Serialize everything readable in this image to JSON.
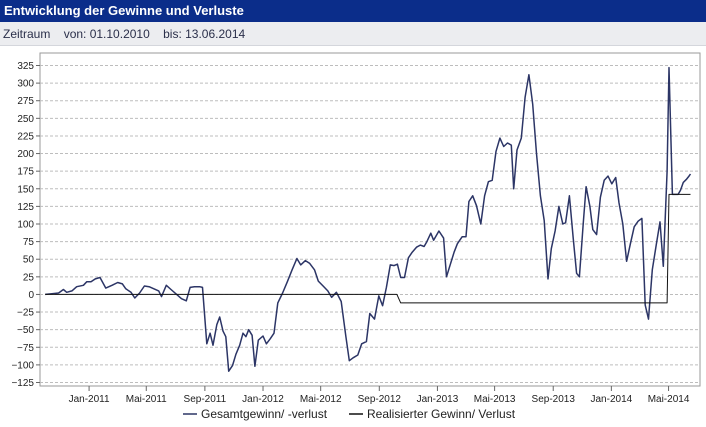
{
  "header": {
    "title": "Entwicklung der Gewinne und Verluste"
  },
  "period": {
    "label": "Zeitraum",
    "from": "von: 01.10.2010",
    "to": "bis: 13.06.2014"
  },
  "colors": {
    "header_bg": "#0b2d8a",
    "series_total": "#2c3566",
    "series_realized": "#111111",
    "grid": "#bdbdbd"
  },
  "chart_data": {
    "type": "line",
    "title": "",
    "ylim": [
      -125,
      335
    ],
    "y_ticks": [
      325,
      300,
      275,
      250,
      225,
      200,
      175,
      150,
      125,
      100,
      75,
      50,
      25,
      0,
      -25,
      -50,
      -75,
      -100,
      -125
    ],
    "y_tick_labels": [
      "325",
      "300",
      "275",
      "250",
      "225",
      "200",
      "175",
      "150",
      "125",
      "100",
      "75",
      "50",
      "25",
      "0",
      "−25",
      "−50",
      "−75",
      "−100",
      "−125"
    ],
    "x_tick_labels": [
      "Jan-2011",
      "Mai-2011",
      "Sep-2011",
      "Jan-2012",
      "Mai-2012",
      "Sep-2012",
      "Jan-2013",
      "Mai-2013",
      "Sep-2013",
      "Jan-2014",
      "Mai-2014"
    ],
    "x_tick_dates": [
      "2011-01-01",
      "2011-05-01",
      "2011-09-01",
      "2012-01-01",
      "2012-05-01",
      "2012-09-01",
      "2013-01-01",
      "2013-05-01",
      "2013-09-01",
      "2014-01-01",
      "2014-05-01"
    ],
    "grid": true,
    "legend_position": "bottom-center",
    "series": [
      {
        "name": "Gesamtgewinn/ -verlust",
        "points": [
          [
            "2010-10-01",
            0
          ],
          [
            "2010-10-15",
            1
          ],
          [
            "2010-10-29",
            2
          ],
          [
            "2010-11-08",
            7
          ],
          [
            "2010-11-15",
            3
          ],
          [
            "2010-11-26",
            5
          ],
          [
            "2010-12-06",
            11
          ],
          [
            "2010-12-20",
            13
          ],
          [
            "2010-12-27",
            18
          ],
          [
            "2011-01-05",
            18
          ],
          [
            "2011-01-14",
            22
          ],
          [
            "2011-01-24",
            24
          ],
          [
            "2011-02-05",
            9
          ],
          [
            "2011-02-18",
            13
          ],
          [
            "2011-03-02",
            17
          ],
          [
            "2011-03-12",
            15
          ],
          [
            "2011-03-19",
            8
          ],
          [
            "2011-03-30",
            3
          ],
          [
            "2011-04-07",
            -5
          ],
          [
            "2011-04-17",
            2
          ],
          [
            "2011-04-27",
            12
          ],
          [
            "2011-05-07",
            11
          ],
          [
            "2011-05-17",
            8
          ],
          [
            "2011-05-27",
            5
          ],
          [
            "2011-06-02",
            -3
          ],
          [
            "2011-06-12",
            13
          ],
          [
            "2011-06-22",
            7
          ],
          [
            "2011-07-02",
            1
          ],
          [
            "2011-07-14",
            -6
          ],
          [
            "2011-07-24",
            -9
          ],
          [
            "2011-08-01",
            10
          ],
          [
            "2011-08-10",
            11
          ],
          [
            "2011-08-21",
            11
          ],
          [
            "2011-08-27",
            10
          ],
          [
            "2011-09-05",
            -70
          ],
          [
            "2011-09-12",
            -55
          ],
          [
            "2011-09-18",
            -72
          ],
          [
            "2011-09-26",
            -43
          ],
          [
            "2011-10-02",
            -32
          ],
          [
            "2011-10-09",
            -52
          ],
          [
            "2011-10-15",
            -60
          ],
          [
            "2011-10-21",
            -109
          ],
          [
            "2011-10-29",
            -101
          ],
          [
            "2011-11-05",
            -85
          ],
          [
            "2011-11-13",
            -72
          ],
          [
            "2011-11-20",
            -55
          ],
          [
            "2011-11-26",
            -60
          ],
          [
            "2011-12-02",
            -50
          ],
          [
            "2011-12-09",
            -58
          ],
          [
            "2011-12-15",
            -102
          ],
          [
            "2011-12-22",
            -65
          ],
          [
            "2012-01-01",
            -59
          ],
          [
            "2012-01-08",
            -70
          ],
          [
            "2012-01-16",
            -63
          ],
          [
            "2012-01-24",
            -55
          ],
          [
            "2012-02-01",
            -12
          ],
          [
            "2012-02-11",
            2
          ],
          [
            "2012-02-21",
            18
          ],
          [
            "2012-03-02",
            35
          ],
          [
            "2012-03-12",
            51
          ],
          [
            "2012-03-20",
            42
          ],
          [
            "2012-03-30",
            48
          ],
          [
            "2012-04-08",
            44
          ],
          [
            "2012-04-18",
            35
          ],
          [
            "2012-04-26",
            19
          ],
          [
            "2012-05-06",
            12
          ],
          [
            "2012-05-16",
            5
          ],
          [
            "2012-05-24",
            -4
          ],
          [
            "2012-06-03",
            3
          ],
          [
            "2012-06-13",
            -10
          ],
          [
            "2012-06-23",
            -60
          ],
          [
            "2012-06-30",
            -94
          ],
          [
            "2012-07-08",
            -90
          ],
          [
            "2012-07-18",
            -86
          ],
          [
            "2012-07-26",
            -70
          ],
          [
            "2012-08-05",
            -67
          ],
          [
            "2012-08-12",
            -27
          ],
          [
            "2012-08-22",
            -35
          ],
          [
            "2012-08-31",
            -2
          ],
          [
            "2012-09-08",
            -16
          ],
          [
            "2012-09-16",
            10
          ],
          [
            "2012-09-24",
            42
          ],
          [
            "2012-10-02",
            41
          ],
          [
            "2012-10-09",
            43
          ],
          [
            "2012-10-16",
            24
          ],
          [
            "2012-10-24",
            24
          ],
          [
            "2012-11-01",
            52
          ],
          [
            "2012-11-09",
            60
          ],
          [
            "2012-11-18",
            67
          ],
          [
            "2012-11-26",
            70
          ],
          [
            "2012-12-04",
            68
          ],
          [
            "2012-12-10",
            75
          ],
          [
            "2012-12-18",
            87
          ],
          [
            "2012-12-24",
            77
          ],
          [
            "2013-01-04",
            90
          ],
          [
            "2013-01-14",
            80
          ],
          [
            "2013-01-20",
            25
          ],
          [
            "2013-01-26",
            38
          ],
          [
            "2013-02-05",
            60
          ],
          [
            "2013-02-12",
            72
          ],
          [
            "2013-02-22",
            82
          ],
          [
            "2013-03-02",
            82
          ],
          [
            "2013-03-08",
            132
          ],
          [
            "2013-03-16",
            140
          ],
          [
            "2013-03-24",
            126
          ],
          [
            "2013-04-02",
            100
          ],
          [
            "2013-04-10",
            140
          ],
          [
            "2013-04-18",
            160
          ],
          [
            "2013-04-26",
            162
          ],
          [
            "2013-05-04",
            203
          ],
          [
            "2013-05-12",
            222
          ],
          [
            "2013-05-20",
            210
          ],
          [
            "2013-05-28",
            215
          ],
          [
            "2013-06-05",
            212
          ],
          [
            "2013-06-10",
            150
          ],
          [
            "2013-06-17",
            205
          ],
          [
            "2013-06-26",
            222
          ],
          [
            "2013-07-04",
            280
          ],
          [
            "2013-07-12",
            312
          ],
          [
            "2013-07-20",
            270
          ],
          [
            "2013-07-28",
            200
          ],
          [
            "2013-08-05",
            140
          ],
          [
            "2013-08-13",
            105
          ],
          [
            "2013-08-21",
            22
          ],
          [
            "2013-08-28",
            65
          ],
          [
            "2013-09-05",
            90
          ],
          [
            "2013-09-13",
            125
          ],
          [
            "2013-09-21",
            100
          ],
          [
            "2013-09-27",
            102
          ],
          [
            "2013-10-05",
            140
          ],
          [
            "2013-10-13",
            80
          ],
          [
            "2013-10-20",
            30
          ],
          [
            "2013-10-26",
            25
          ],
          [
            "2013-11-03",
            100
          ],
          [
            "2013-11-09",
            153
          ],
          [
            "2013-11-17",
            125
          ],
          [
            "2013-11-23",
            92
          ],
          [
            "2013-12-01",
            85
          ],
          [
            "2013-12-09",
            138
          ],
          [
            "2013-12-17",
            162
          ],
          [
            "2013-12-25",
            168
          ],
          [
            "2014-01-02",
            157
          ],
          [
            "2014-01-10",
            166
          ],
          [
            "2014-01-17",
            130
          ],
          [
            "2014-01-25",
            100
          ],
          [
            "2014-02-02",
            47
          ],
          [
            "2014-02-10",
            72
          ],
          [
            "2014-02-18",
            96
          ],
          [
            "2014-02-26",
            104
          ],
          [
            "2014-03-06",
            108
          ],
          [
            "2014-03-13",
            -15
          ],
          [
            "2014-03-20",
            -35
          ],
          [
            "2014-03-28",
            35
          ],
          [
            "2014-04-05",
            70
          ],
          [
            "2014-04-13",
            103
          ],
          [
            "2014-04-20",
            40
          ],
          [
            "2014-04-28",
            175
          ],
          [
            "2014-05-02",
            322
          ],
          [
            "2014-05-09",
            142
          ],
          [
            "2014-05-15",
            142
          ],
          [
            "2014-05-21",
            142
          ],
          [
            "2014-05-26",
            148
          ],
          [
            "2014-06-01",
            159
          ],
          [
            "2014-06-07",
            163
          ],
          [
            "2014-06-13",
            168
          ],
          [
            "2014-06-16",
            171
          ]
        ]
      },
      {
        "name": "Realisierter Gewinn/ Verlust",
        "points": [
          [
            "2010-10-01",
            0
          ],
          [
            "2012-10-08",
            0
          ],
          [
            "2012-10-16",
            -12
          ],
          [
            "2014-04-28",
            -12
          ],
          [
            "2014-05-02",
            142
          ],
          [
            "2014-06-16",
            142
          ]
        ]
      }
    ]
  }
}
